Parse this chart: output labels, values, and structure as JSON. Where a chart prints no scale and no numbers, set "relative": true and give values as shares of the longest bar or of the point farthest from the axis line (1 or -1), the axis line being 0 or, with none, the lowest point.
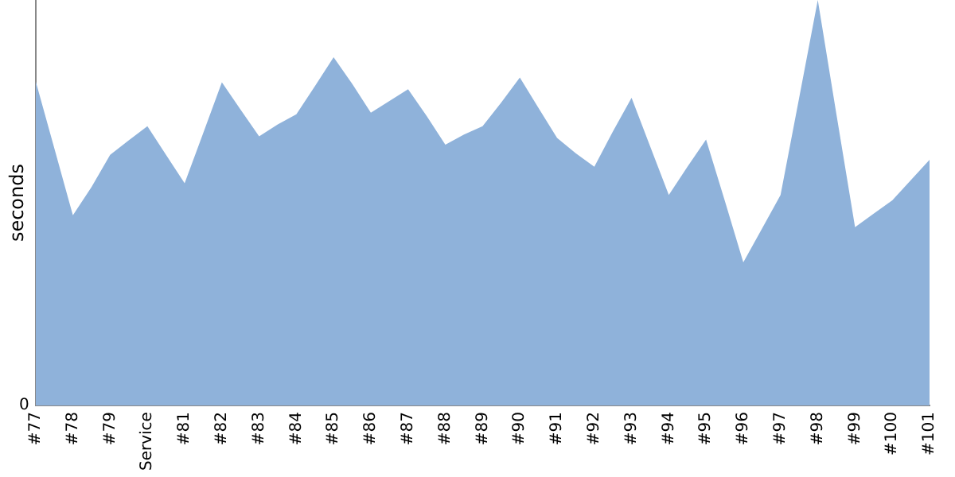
{
  "chart_data": {
    "type": "area",
    "ylabel": "seconds",
    "relative": true,
    "grid": false,
    "legend": false,
    "annotations": [
      "0"
    ],
    "categories": [
      "#77",
      null,
      "#78",
      null,
      "#79",
      null,
      "Service",
      null,
      "#81",
      null,
      "#82",
      null,
      "#83",
      null,
      "#84",
      null,
      "#85",
      null,
      "#86",
      null,
      "#87",
      null,
      "#88",
      null,
      "#89",
      null,
      "#90",
      null,
      "#91",
      null,
      "#92",
      null,
      "#93",
      null,
      "#94",
      null,
      "#95",
      null,
      "#96",
      null,
      "#97",
      null,
      "#98",
      null,
      "#99",
      null,
      "#100",
      null,
      "#101"
    ],
    "series": [
      {
        "color": "#8fb2da",
        "values": [
          0.8,
          0.635,
          0.469,
          0.539,
          0.618,
          0.654,
          0.689,
          0.618,
          0.548,
          0.672,
          0.797,
          0.73,
          0.664,
          0.693,
          0.718,
          0.788,
          0.859,
          0.793,
          0.722,
          0.751,
          0.78,
          0.714,
          0.643,
          0.668,
          0.689,
          0.747,
          0.809,
          0.734,
          0.66,
          0.622,
          0.589,
          0.676,
          0.759,
          0.639,
          0.519,
          0.589,
          0.656,
          0.506,
          0.353,
          0.436,
          0.519,
          0.759,
          1,
          0.718,
          0.44,
          0.473,
          0.506,
          0.556,
          0.606
        ]
      }
    ]
  }
}
